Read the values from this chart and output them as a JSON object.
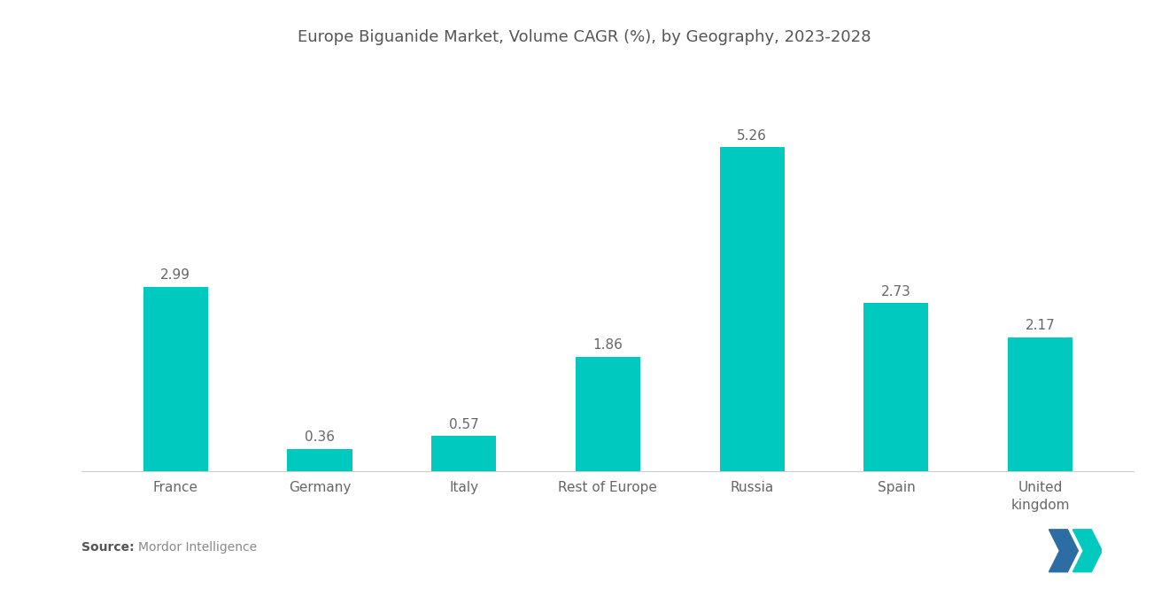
{
  "title": "Europe Biguanide Market, Volume CAGR (%), by Geography, 2023-2028",
  "categories": [
    "France",
    "Germany",
    "Italy",
    "Rest of Europe",
    "Russia",
    "Spain",
    "United\nkingdom"
  ],
  "values": [
    2.99,
    0.36,
    0.57,
    1.86,
    5.26,
    2.73,
    2.17
  ],
  "bar_color": "#00C9C0",
  "background_color": "#ffffff",
  "title_fontsize": 13,
  "label_fontsize": 11,
  "value_fontsize": 11,
  "source_bold": "Source:",
  "source_text": "Mordor Intelligence",
  "source_fontsize": 10,
  "ylim": [
    0,
    6.5
  ],
  "bar_width": 0.45,
  "logo_left_color": "#2E6DA4",
  "logo_right_color": "#00C9C0"
}
